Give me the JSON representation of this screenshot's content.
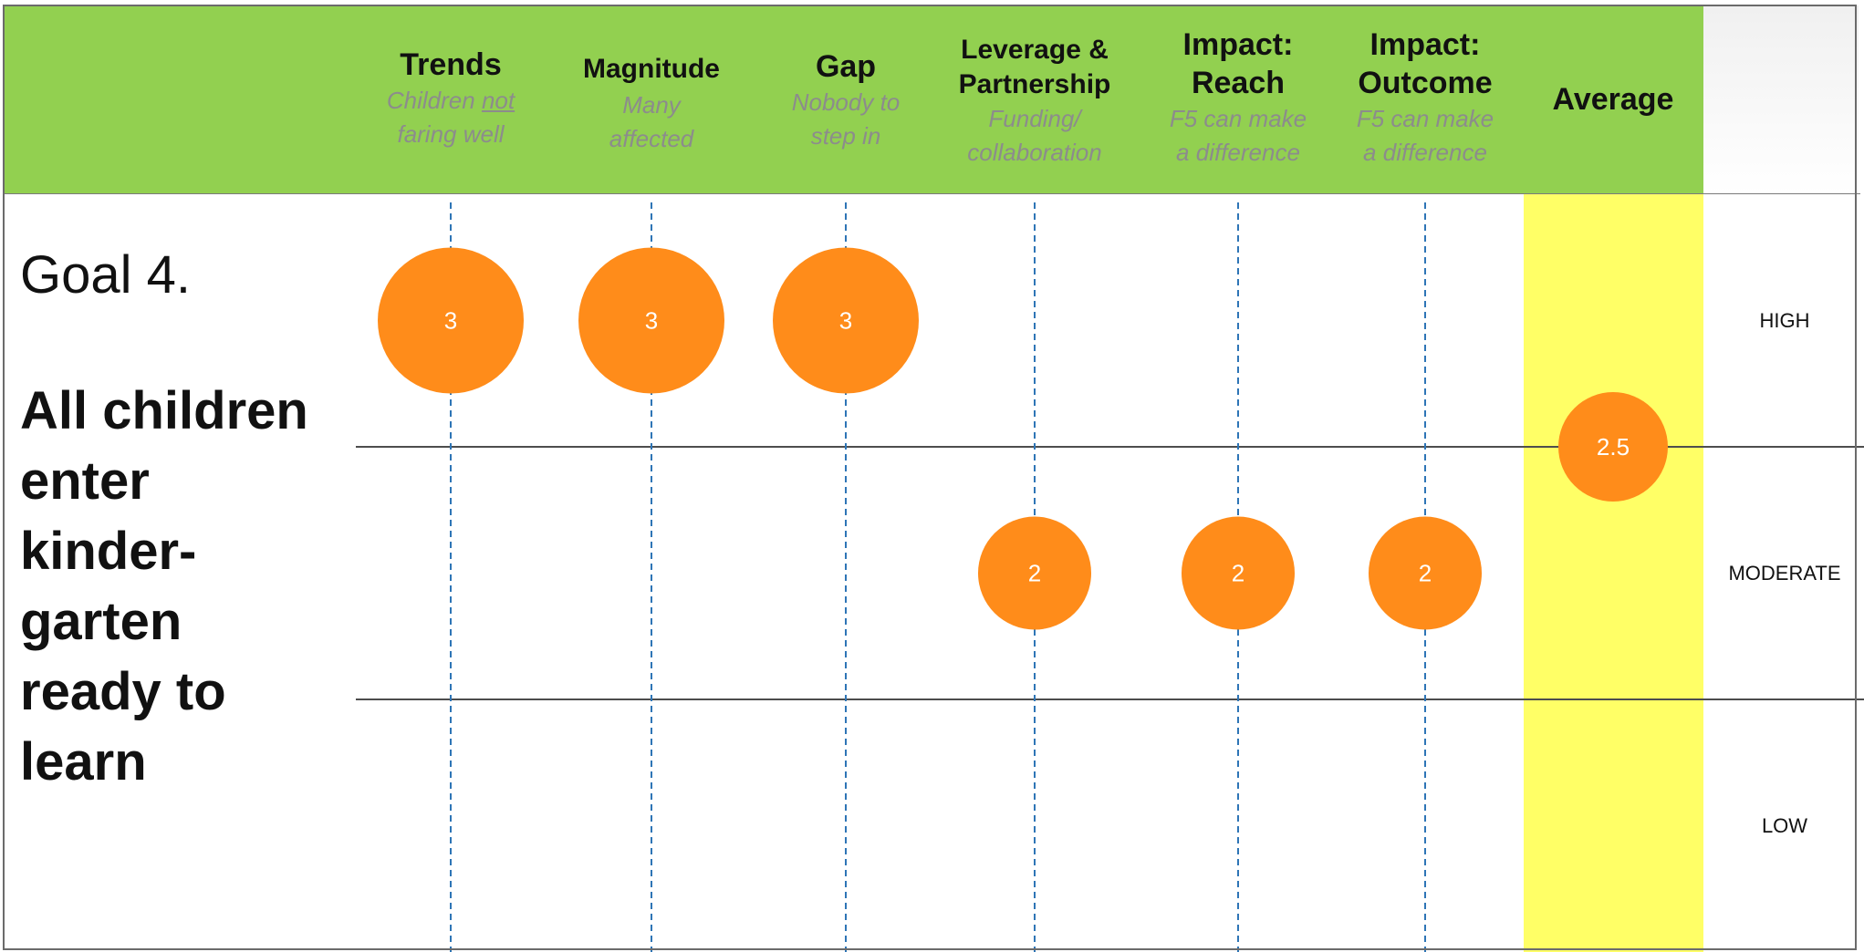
{
  "colors": {
    "header_bg": "#92d050",
    "average_band": "#ffff66",
    "bubble": "#ff8c1a",
    "bubble_text": "#ffffff",
    "column_line": "#2e75b6",
    "level_rule": "#4d4d4d"
  },
  "goal": {
    "number_label": "Goal 4.",
    "text": "All children enter kinder-garten ready to learn",
    "text_lines": [
      "All children",
      "enter",
      "kinder-",
      "garten",
      "ready to",
      "learn"
    ]
  },
  "chart_data": {
    "type": "scatter",
    "title": "",
    "xlabel": "",
    "ylabel": "",
    "categories": [
      {
        "title_lines": [
          "Trends"
        ],
        "subtitle": {
          "before": "Children ",
          "underlined": "not",
          "after": "",
          "lines_after": [
            "faring well"
          ]
        }
      },
      {
        "title_lines": [
          "Magnitude"
        ],
        "subtitle": {
          "lines": [
            "Many",
            "affected"
          ]
        }
      },
      {
        "title_lines": [
          "Gap"
        ],
        "subtitle": {
          "lines": [
            "Nobody to",
            "step in"
          ]
        }
      },
      {
        "title_lines": [
          "Leverage &",
          "Partnership"
        ],
        "subtitle": {
          "lines": [
            "Funding/",
            "collaboration"
          ]
        }
      },
      {
        "title_lines": [
          "Impact:",
          "Reach"
        ],
        "subtitle": {
          "lines": [
            "F5 can make",
            "a difference"
          ]
        }
      },
      {
        "title_lines": [
          "Impact:",
          "Outcome"
        ],
        "subtitle": {
          "lines": [
            "F5 can make",
            "a difference"
          ]
        }
      },
      {
        "title_lines": [
          "Average"
        ],
        "subtitle": {
          "lines": []
        }
      }
    ],
    "category_names": [
      "Trends",
      "Magnitude",
      "Gap",
      "Leverage & Partnership",
      "Impact: Reach",
      "Impact: Outcome",
      "Average"
    ],
    "values": [
      3,
      3,
      3,
      2,
      2,
      2,
      2.5
    ],
    "value_labels": [
      "3",
      "3",
      "3",
      "2",
      "2",
      "2",
      "2.5"
    ],
    "levels": [
      "HIGH",
      "MODERATE",
      "LOW"
    ],
    "level_boundaries": [
      2.5,
      1.5
    ],
    "ylim": [
      0.5,
      3.5
    ],
    "grid": false,
    "legend": "none"
  }
}
